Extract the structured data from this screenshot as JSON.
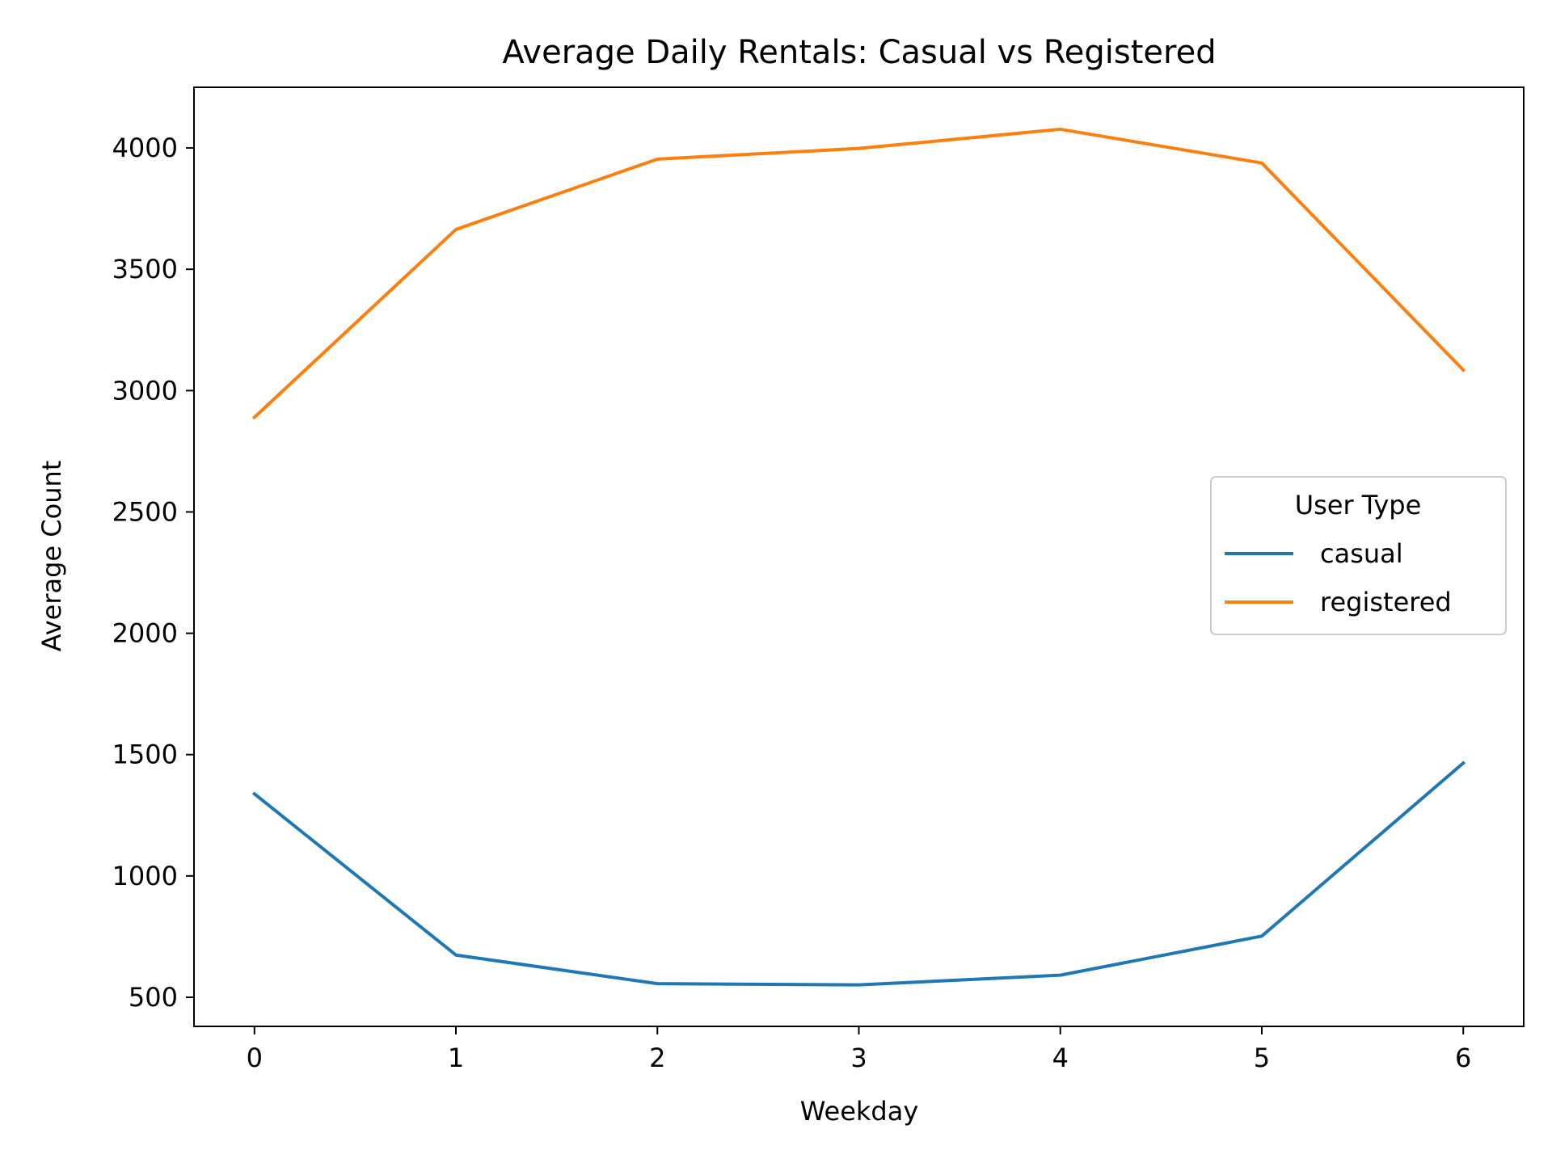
{
  "chart_data": {
    "type": "line",
    "title": "Average Daily Rentals: Casual vs Registered",
    "xlabel": "Weekday",
    "ylabel": "Average Count",
    "x": [
      0,
      1,
      2,
      3,
      4,
      5,
      6
    ],
    "xlim": [
      -0.3,
      6.3
    ],
    "ylim": [
      380,
      4250
    ],
    "xticks": [
      0,
      1,
      2,
      3,
      4,
      5,
      6
    ],
    "xtick_labels": [
      "0",
      "1",
      "2",
      "3",
      "4",
      "5",
      "6"
    ],
    "yticks": [
      500,
      1000,
      1500,
      2000,
      2500,
      3000,
      3500,
      4000
    ],
    "ytick_labels": [
      "500",
      "1000",
      "1500",
      "2000",
      "2500",
      "3000",
      "3500",
      "4000"
    ],
    "grid": false,
    "legend": {
      "title": "User Type",
      "placement": "center-right"
    },
    "series": [
      {
        "name": "casual",
        "color": "#1f77b4",
        "values": [
          1338,
          674,
          556,
          551,
          591,
          752,
          1465
        ]
      },
      {
        "name": "registered",
        "color": "#ff7f0e",
        "values": [
          2890,
          3664,
          3954,
          3998,
          4077,
          3938,
          3085
        ]
      }
    ]
  }
}
